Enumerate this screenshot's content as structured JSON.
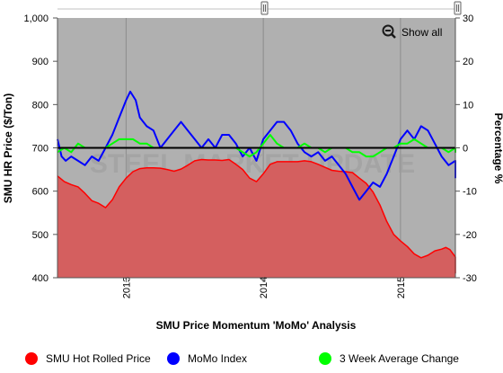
{
  "ui": {
    "show_all_label": "Show all",
    "watermark_text": "STEEL MARKET UPDATE",
    "title": "SMU Price Momentum 'MoMo' Analysis"
  },
  "chart_data": {
    "type": "area",
    "title": "SMU Price Momentum 'MoMo' Analysis",
    "ylabel": "SMU HR Price ($/Ton)",
    "y2label": "Percentage %",
    "xlabel": "",
    "ylim": [
      400,
      1000
    ],
    "y2lim": [
      -30,
      30
    ],
    "yticks": [
      400,
      500,
      600,
      700,
      800,
      900,
      1000
    ],
    "y2ticks": [
      -30,
      -20,
      -10,
      0,
      10,
      20,
      30
    ],
    "xlim": [
      2012.5,
      2015.4
    ],
    "xticks": [
      2013,
      2014,
      2015
    ],
    "xtick_labels": [
      "2013",
      "2014",
      "2015"
    ],
    "plot_background": "#b0b0b0",
    "grid": true,
    "legend_position": "bottom",
    "series": [
      {
        "name": "SMU Hot Rolled Price",
        "axis": "left",
        "kind": "area",
        "color": "#ff0000",
        "fill": "#d45f5f",
        "points": [
          [
            2012.5,
            635
          ],
          [
            2012.55,
            622
          ],
          [
            2012.6,
            615
          ],
          [
            2012.65,
            610
          ],
          [
            2012.7,
            595
          ],
          [
            2012.75,
            578
          ],
          [
            2012.8,
            572
          ],
          [
            2012.85,
            562
          ],
          [
            2012.9,
            580
          ],
          [
            2012.95,
            610
          ],
          [
            2013.0,
            630
          ],
          [
            2013.05,
            645
          ],
          [
            2013.1,
            652
          ],
          [
            2013.15,
            654
          ],
          [
            2013.2,
            654
          ],
          [
            2013.25,
            653
          ],
          [
            2013.3,
            650
          ],
          [
            2013.35,
            646
          ],
          [
            2013.4,
            651
          ],
          [
            2013.45,
            660
          ],
          [
            2013.5,
            670
          ],
          [
            2013.55,
            673
          ],
          [
            2013.6,
            672
          ],
          [
            2013.65,
            672
          ],
          [
            2013.7,
            671
          ],
          [
            2013.75,
            673
          ],
          [
            2013.8,
            662
          ],
          [
            2013.85,
            650
          ],
          [
            2013.9,
            630
          ],
          [
            2013.95,
            622
          ],
          [
            2014.0,
            640
          ],
          [
            2014.05,
            662
          ],
          [
            2014.1,
            668
          ],
          [
            2014.15,
            668
          ],
          [
            2014.2,
            668
          ],
          [
            2014.25,
            668
          ],
          [
            2014.3,
            670
          ],
          [
            2014.35,
            668
          ],
          [
            2014.4,
            662
          ],
          [
            2014.45,
            655
          ],
          [
            2014.5,
            648
          ],
          [
            2014.55,
            646
          ],
          [
            2014.6,
            645
          ],
          [
            2014.65,
            643
          ],
          [
            2014.7,
            630
          ],
          [
            2014.75,
            618
          ],
          [
            2014.8,
            598
          ],
          [
            2014.85,
            568
          ],
          [
            2014.9,
            530
          ],
          [
            2014.95,
            500
          ],
          [
            2015.0,
            485
          ],
          [
            2015.05,
            472
          ],
          [
            2015.1,
            455
          ],
          [
            2015.15,
            446
          ],
          [
            2015.2,
            452
          ],
          [
            2015.25,
            462
          ],
          [
            2015.3,
            466
          ],
          [
            2015.33,
            470
          ],
          [
            2015.36,
            465
          ],
          [
            2015.4,
            448
          ],
          [
            2015.43,
            436
          ],
          [
            2015.47,
            428
          ],
          [
            2015.5,
            410
          ]
        ]
      },
      {
        "name": "MoMo Index",
        "axis": "right",
        "kind": "line",
        "color": "#0000ff",
        "points": [
          [
            2012.5,
            2
          ],
          [
            2012.53,
            -2
          ],
          [
            2012.56,
            -3
          ],
          [
            2012.6,
            -2
          ],
          [
            2012.65,
            -3
          ],
          [
            2012.7,
            -4
          ],
          [
            2012.75,
            -2
          ],
          [
            2012.8,
            -3
          ],
          [
            2012.85,
            0
          ],
          [
            2012.9,
            3
          ],
          [
            2012.95,
            7
          ],
          [
            2013.0,
            11
          ],
          [
            2013.03,
            13
          ],
          [
            2013.07,
            11
          ],
          [
            2013.1,
            7
          ],
          [
            2013.15,
            5
          ],
          [
            2013.2,
            4
          ],
          [
            2013.25,
            0
          ],
          [
            2013.3,
            2
          ],
          [
            2013.35,
            4
          ],
          [
            2013.4,
            6
          ],
          [
            2013.45,
            4
          ],
          [
            2013.5,
            2
          ],
          [
            2013.55,
            0
          ],
          [
            2013.6,
            2
          ],
          [
            2013.65,
            0
          ],
          [
            2013.7,
            3
          ],
          [
            2013.75,
            3
          ],
          [
            2013.8,
            1
          ],
          [
            2013.85,
            -2
          ],
          [
            2013.9,
            0
          ],
          [
            2013.95,
            -3
          ],
          [
            2014.0,
            2
          ],
          [
            2014.05,
            4
          ],
          [
            2014.1,
            6
          ],
          [
            2014.15,
            6
          ],
          [
            2014.2,
            4
          ],
          [
            2014.25,
            1
          ],
          [
            2014.3,
            -1
          ],
          [
            2014.35,
            -2
          ],
          [
            2014.4,
            -1
          ],
          [
            2014.45,
            -3
          ],
          [
            2014.5,
            -2
          ],
          [
            2014.55,
            -4
          ],
          [
            2014.6,
            -6
          ],
          [
            2014.65,
            -9
          ],
          [
            2014.7,
            -12
          ],
          [
            2014.75,
            -10
          ],
          [
            2014.8,
            -8
          ],
          [
            2014.85,
            -9
          ],
          [
            2014.9,
            -6
          ],
          [
            2014.95,
            -2
          ],
          [
            2015.0,
            2
          ],
          [
            2015.05,
            4
          ],
          [
            2015.1,
            2
          ],
          [
            2015.15,
            5
          ],
          [
            2015.2,
            4
          ],
          [
            2015.25,
            1
          ],
          [
            2015.3,
            -2
          ],
          [
            2015.35,
            -4
          ],
          [
            2015.4,
            -3
          ],
          [
            2015.45,
            -6
          ],
          [
            2015.5,
            -7
          ]
        ]
      },
      {
        "name": "3 Week Average Change",
        "axis": "right",
        "kind": "line",
        "color": "#00ff00",
        "points": [
          [
            2012.5,
            -1
          ],
          [
            2012.55,
            0
          ],
          [
            2012.6,
            -1
          ],
          [
            2012.65,
            1
          ],
          [
            2012.7,
            0
          ],
          [
            2012.75,
            0
          ],
          [
            2012.8,
            0
          ],
          [
            2012.85,
            0
          ],
          [
            2012.9,
            1
          ],
          [
            2012.95,
            2
          ],
          [
            2013.0,
            2
          ],
          [
            2013.05,
            2
          ],
          [
            2013.1,
            1
          ],
          [
            2013.15,
            1
          ],
          [
            2013.2,
            0
          ],
          [
            2013.25,
            0
          ],
          [
            2013.3,
            0
          ],
          [
            2013.35,
            0
          ],
          [
            2013.4,
            0
          ],
          [
            2013.45,
            0
          ],
          [
            2013.5,
            0
          ],
          [
            2013.55,
            0
          ],
          [
            2013.6,
            0
          ],
          [
            2013.65,
            0
          ],
          [
            2013.7,
            0
          ],
          [
            2013.75,
            0
          ],
          [
            2013.8,
            0
          ],
          [
            2013.85,
            -1
          ],
          [
            2013.9,
            -2
          ],
          [
            2013.95,
            -1
          ],
          [
            2014.0,
            1
          ],
          [
            2014.05,
            3
          ],
          [
            2014.1,
            1
          ],
          [
            2014.15,
            0
          ],
          [
            2014.2,
            0
          ],
          [
            2014.25,
            0
          ],
          [
            2014.3,
            1
          ],
          [
            2014.35,
            0
          ],
          [
            2014.4,
            0
          ],
          [
            2014.45,
            -1
          ],
          [
            2014.5,
            0
          ],
          [
            2014.55,
            0
          ],
          [
            2014.6,
            0
          ],
          [
            2014.65,
            -1
          ],
          [
            2014.7,
            -1
          ],
          [
            2014.75,
            -2
          ],
          [
            2014.8,
            -2
          ],
          [
            2014.85,
            -1
          ],
          [
            2014.9,
            0
          ],
          [
            2014.95,
            0
          ],
          [
            2015.0,
            1
          ],
          [
            2015.05,
            1
          ],
          [
            2015.1,
            2
          ],
          [
            2015.15,
            1
          ],
          [
            2015.2,
            0
          ],
          [
            2015.25,
            0
          ],
          [
            2015.3,
            0
          ],
          [
            2015.35,
            -1
          ],
          [
            2015.4,
            0
          ],
          [
            2015.45,
            -1
          ],
          [
            2015.5,
            0
          ]
        ]
      }
    ]
  }
}
